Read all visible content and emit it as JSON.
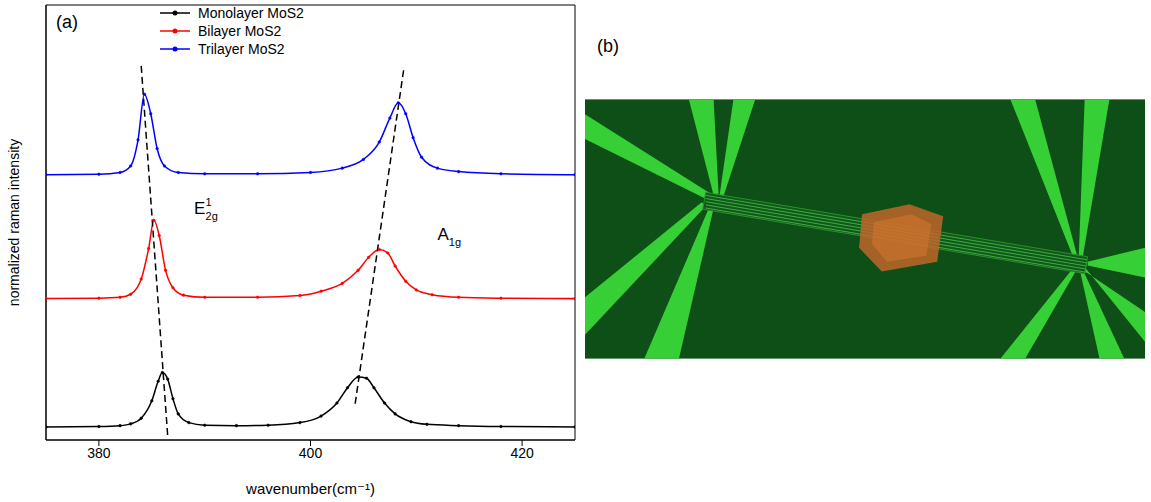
{
  "chart_data": {
    "type": "line",
    "panel_label": "(a)",
    "x_label": "wavenumber(cm⁻¹)",
    "y_label": "normalized raman intensity",
    "xlim": [
      375,
      425
    ],
    "xticks": [
      380,
      400,
      420
    ],
    "ylim": [
      0,
      10
    ],
    "tick_labels": "x",
    "legend": "upper center",
    "series": [
      {
        "name": "Monolayer MoS2",
        "color": "#000000",
        "marker": "circle",
        "x": [
          375,
          380,
          382,
          383,
          384,
          385,
          385.6,
          386,
          386.5,
          387,
          387.5,
          388.5,
          390,
          393,
          396,
          399,
          401,
          402.5,
          403.5,
          404.5,
          405.3,
          406,
          407,
          408,
          409.5,
          411,
          414,
          418,
          425
        ],
        "values": [
          0.3,
          0.31,
          0.33,
          0.37,
          0.5,
          0.9,
          1.35,
          1.55,
          1.4,
          0.95,
          0.6,
          0.4,
          0.34,
          0.33,
          0.34,
          0.4,
          0.55,
          0.85,
          1.2,
          1.45,
          1.42,
          1.2,
          0.85,
          0.6,
          0.42,
          0.36,
          0.33,
          0.31,
          0.3
        ]
      },
      {
        "name": "Bilayer MoS2",
        "color": "#ff0000",
        "marker": "circle",
        "x": [
          375,
          380,
          382,
          383,
          384,
          384.7,
          385.2,
          385.7,
          386.3,
          387,
          388,
          390,
          395,
          399,
          401,
          403,
          404.5,
          405.5,
          406.5,
          407.3,
          408,
          409,
          410,
          411.5,
          414,
          418,
          425
        ],
        "values": [
          3.25,
          3.26,
          3.28,
          3.35,
          3.7,
          4.4,
          5.05,
          4.7,
          3.9,
          3.5,
          3.33,
          3.28,
          3.28,
          3.32,
          3.42,
          3.6,
          3.9,
          4.2,
          4.38,
          4.3,
          4.0,
          3.65,
          3.45,
          3.34,
          3.28,
          3.26,
          3.25
        ]
      },
      {
        "name": "Trilayer MoS2",
        "color": "#0000ff",
        "marker": "circle",
        "x": [
          375,
          380,
          382,
          383,
          383.7,
          384.3,
          384.9,
          385.5,
          386.2,
          387.5,
          390,
          395,
          400,
          403,
          405,
          406.5,
          407.5,
          408.3,
          409,
          409.7,
          410.5,
          412,
          414,
          418,
          425
        ],
        "values": [
          6.1,
          6.11,
          6.15,
          6.3,
          6.9,
          7.95,
          7.5,
          6.7,
          6.3,
          6.15,
          6.12,
          6.12,
          6.15,
          6.25,
          6.45,
          6.85,
          7.4,
          7.75,
          7.5,
          6.95,
          6.5,
          6.25,
          6.17,
          6.12,
          6.1
        ]
      }
    ],
    "guide_lines": [
      {
        "x": [
          384.0,
          386.5
        ],
        "values": [
          8.6,
          0.1
        ],
        "color": "#000000",
        "line_style": "dashed"
      },
      {
        "x": [
          408.8,
          404.2
        ],
        "values": [
          8.5,
          0.8
        ],
        "color": "#000000",
        "line_style": "dashed"
      }
    ],
    "annotations": [
      {
        "base": "E",
        "sup": "1",
        "sub": "2g",
        "x": 389,
        "y": 5.2
      },
      {
        "base": "A",
        "sub": "1g",
        "x": 412,
        "y": 4.6
      }
    ]
  },
  "image_panel": {
    "label": "(b)"
  }
}
